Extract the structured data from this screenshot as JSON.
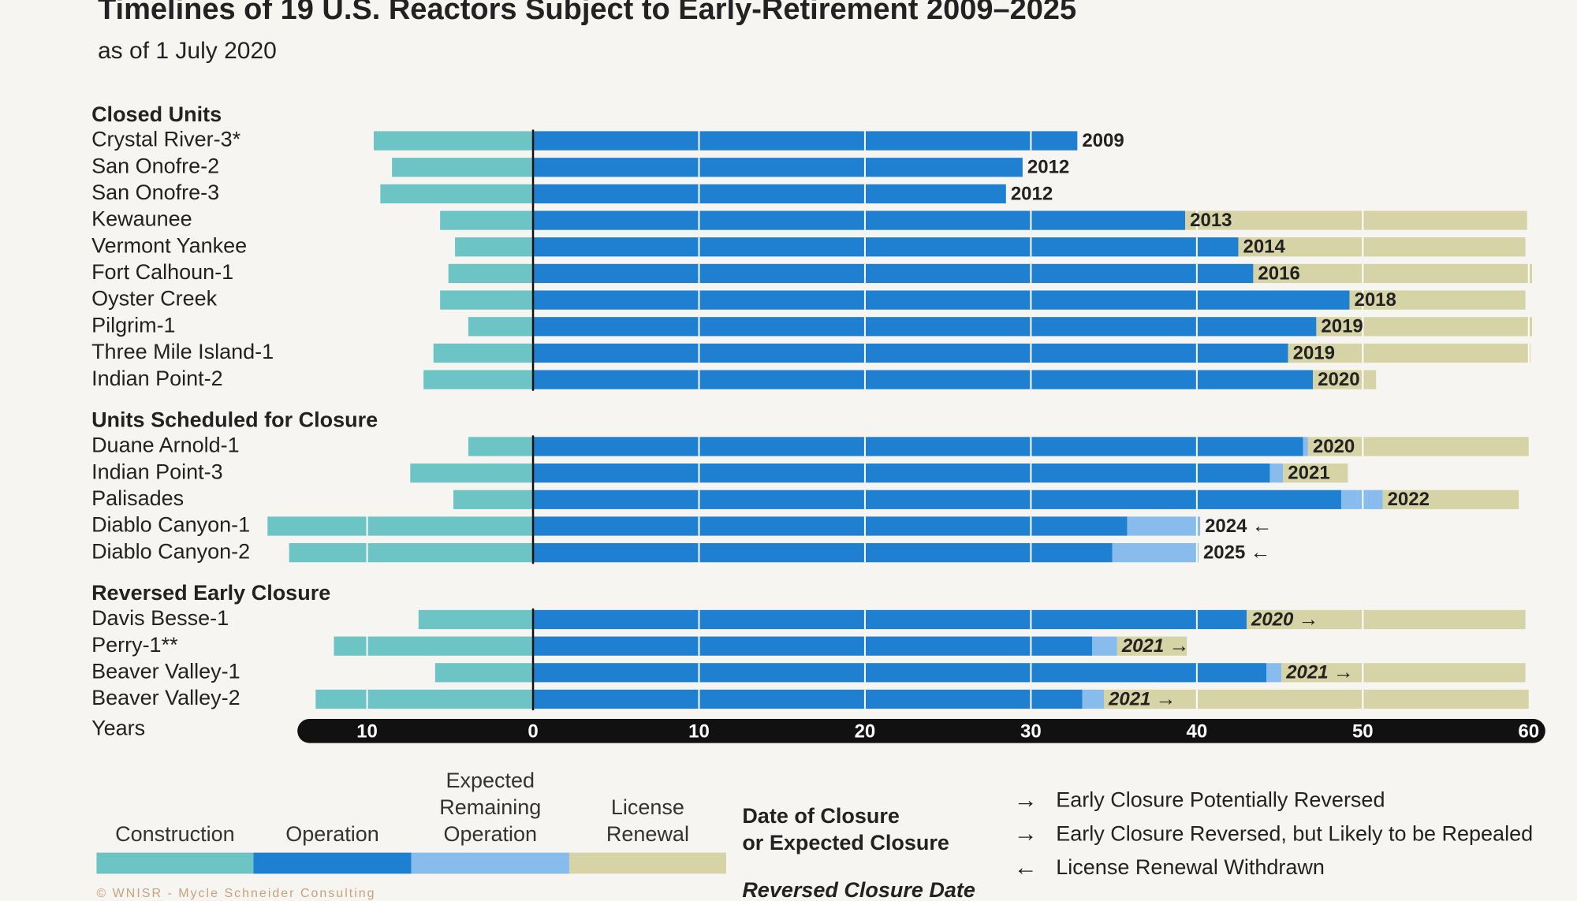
{
  "chart_data": {
    "type": "timeline",
    "title": "Timelines of 19 U.S. Reactors Subject to Early-Retirement 2009–2025",
    "subtitle": "as of 1 July 2020",
    "xlabel": "Years",
    "xlim": [
      -14.2,
      61
    ],
    "xticks": [
      {
        "value": -10,
        "label": "10"
      },
      0,
      10,
      20,
      30,
      40,
      50,
      60
    ],
    "legend": [
      {
        "name": "Construction",
        "color": "#6cc4c4"
      },
      {
        "name": "Operation",
        "color": "#1f80d1"
      },
      {
        "name": "Expected\nRemaining\nOperation",
        "color": "#87bcec"
      },
      {
        "name": "License\nRenewal",
        "color": "#d6d4a6"
      }
    ],
    "closure_legend": "Date of Closure\nor Expected Closure",
    "reversed_legend": "Reversed Closure Date",
    "arrow_legend": [
      {
        "arrow": "→",
        "color": "#222222",
        "label": "Early Closure Potentially Reversed"
      },
      {
        "arrow": "→",
        "color": "#d9342b",
        "label": "Early Closure Reversed, but Likely to be Repealed"
      },
      {
        "arrow": "←",
        "color": "#222222",
        "label": "License Renewal Withdrawn"
      }
    ],
    "source": "© WNISR - Mycle Schneider Consulting",
    "groups": [
      {
        "name": "Closed Units",
        "units": [
          {
            "name": "Crystal River-3*",
            "values": [
              -9.6,
              32.8,
              null,
              null
            ],
            "closure": 2009
          },
          {
            "name": "San Onofre-2",
            "values": [
              -8.5,
              29.5,
              null,
              null
            ],
            "closure": 2012
          },
          {
            "name": "San Onofre-3",
            "values": [
              -9.2,
              28.5,
              null,
              null
            ],
            "closure": 2012
          },
          {
            "name": "Kewaunee",
            "values": [
              -5.6,
              39.3,
              null,
              20.6
            ],
            "closure": 2013
          },
          {
            "name": "Vermont Yankee",
            "values": [
              -4.7,
              42.5,
              null,
              17.3
            ],
            "closure": 2014
          },
          {
            "name": "Fort Calhoun-1",
            "values": [
              -5.1,
              43.4,
              null,
              16.8
            ],
            "closure": 2016
          },
          {
            "name": "Oyster Creek",
            "values": [
              -5.6,
              49.2,
              null,
              10.6
            ],
            "closure": 2018
          },
          {
            "name": "Pilgrim-1",
            "values": [
              -3.9,
              47.2,
              null,
              13.0
            ],
            "closure": 2019
          },
          {
            "name": "Three Mile Island-1",
            "values": [
              -6.0,
              45.5,
              null,
              14.6
            ],
            "closure": 2019
          },
          {
            "name": "Indian Point-2",
            "values": [
              -6.6,
              47.0,
              null,
              3.8
            ],
            "closure": 2020
          }
        ]
      },
      {
        "name": "Units Scheduled for Closure",
        "units": [
          {
            "name": "Duane Arnold-1",
            "values": [
              -3.9,
              46.4,
              0.3,
              13.3
            ],
            "closure": 2020
          },
          {
            "name": "Indian Point-3",
            "values": [
              -7.4,
              44.4,
              0.8,
              3.9
            ],
            "closure": 2021
          },
          {
            "name": "Palisades",
            "values": [
              -4.8,
              48.7,
              2.5,
              8.2
            ],
            "closure": 2022
          },
          {
            "name": "Diablo Canyon-1",
            "values": [
              -16.0,
              35.8,
              4.4,
              null
            ],
            "closure": 2024,
            "arrow": "←",
            "arrow_color": "#222222"
          },
          {
            "name": "Diablo Canyon-2",
            "values": [
              -14.7,
              34.9,
              5.2,
              null
            ],
            "closure": 2025,
            "arrow": "←",
            "arrow_color": "#222222"
          }
        ]
      },
      {
        "name": "Reversed Early Closure",
        "italic": true,
        "units": [
          {
            "name": "Davis Besse-1",
            "values": [
              -6.9,
              43.0,
              null,
              16.8
            ],
            "closure": 2020,
            "arrow": "→",
            "arrow_color": "#d9342b"
          },
          {
            "name": "Perry-1**",
            "values": [
              -12.0,
              33.7,
              1.5,
              4.2
            ],
            "closure": 2021,
            "arrow": "→",
            "arrow_color": "#d9342b"
          },
          {
            "name": "Beaver Valley-1",
            "values": [
              -5.9,
              44.2,
              0.9,
              14.7
            ],
            "closure": 2021,
            "arrow": "→",
            "arrow_color": "#222222"
          },
          {
            "name": "Beaver Valley-2",
            "values": [
              -13.1,
              33.1,
              1.3,
              25.6
            ],
            "closure": 2021,
            "arrow": "→",
            "arrow_color": "#222222"
          }
        ]
      }
    ]
  }
}
